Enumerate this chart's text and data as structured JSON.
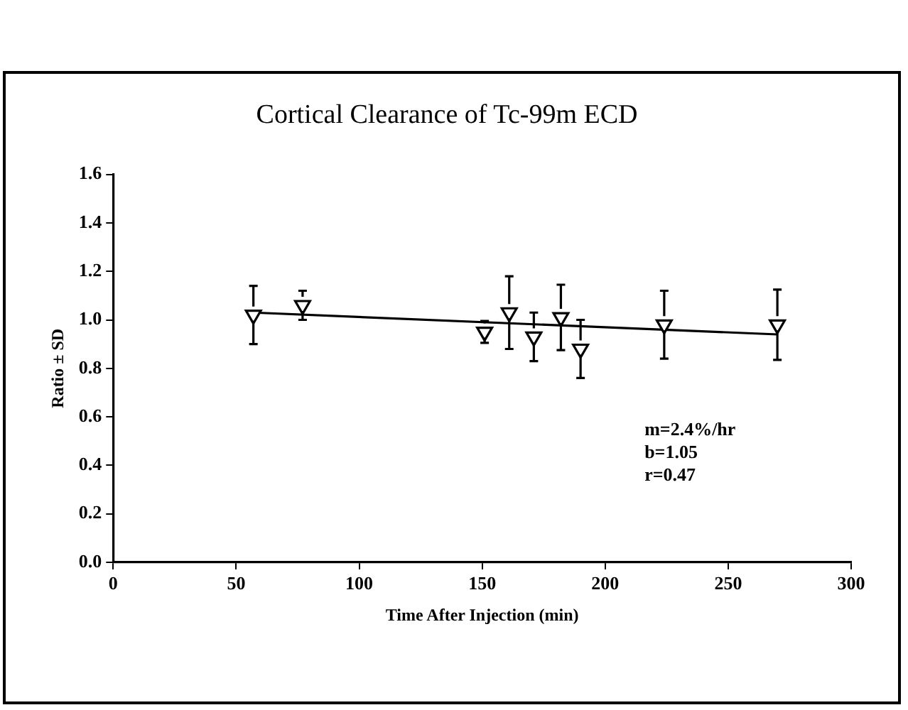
{
  "chart_data": {
    "type": "scatter",
    "title": "Cortical Clearance of Tc-99m ECD",
    "xlabel": "Time After Injection (min)",
    "ylabel": "Ratio ± SD",
    "xlim": [
      0,
      300
    ],
    "xticks": [
      0,
      50,
      100,
      150,
      200,
      250,
      300
    ],
    "ylim": [
      0,
      1.6
    ],
    "yticks": [
      {
        "value": 0,
        "label": "0.0"
      },
      0.2,
      0.4,
      0.6,
      0.8,
      {
        "value": 1,
        "label": "1.0"
      },
      1.2,
      1.4,
      1.6
    ],
    "grid": false,
    "legend": false,
    "series": [
      {
        "marker": "triangle",
        "color": "#000000",
        "x": [
          57,
          77,
          151,
          161,
          171,
          182,
          190,
          224,
          270
        ],
        "values": [
          1.02,
          1.06,
          0.95,
          1.03,
          0.93,
          1.01,
          0.88,
          0.98,
          0.98
        ],
        "errors": [
          0.12,
          0.06,
          0.045,
          0.15,
          0.1,
          0.135,
          0.12,
          0.14,
          0.145
        ]
      },
      {
        "type": "line",
        "color": "#000000",
        "x": [
          57,
          270
        ],
        "values": [
          1.03,
          0.94
        ]
      }
    ],
    "annotations": [
      "m=2.4%/hr",
      "b=1.05",
      "r=0.47"
    ]
  }
}
